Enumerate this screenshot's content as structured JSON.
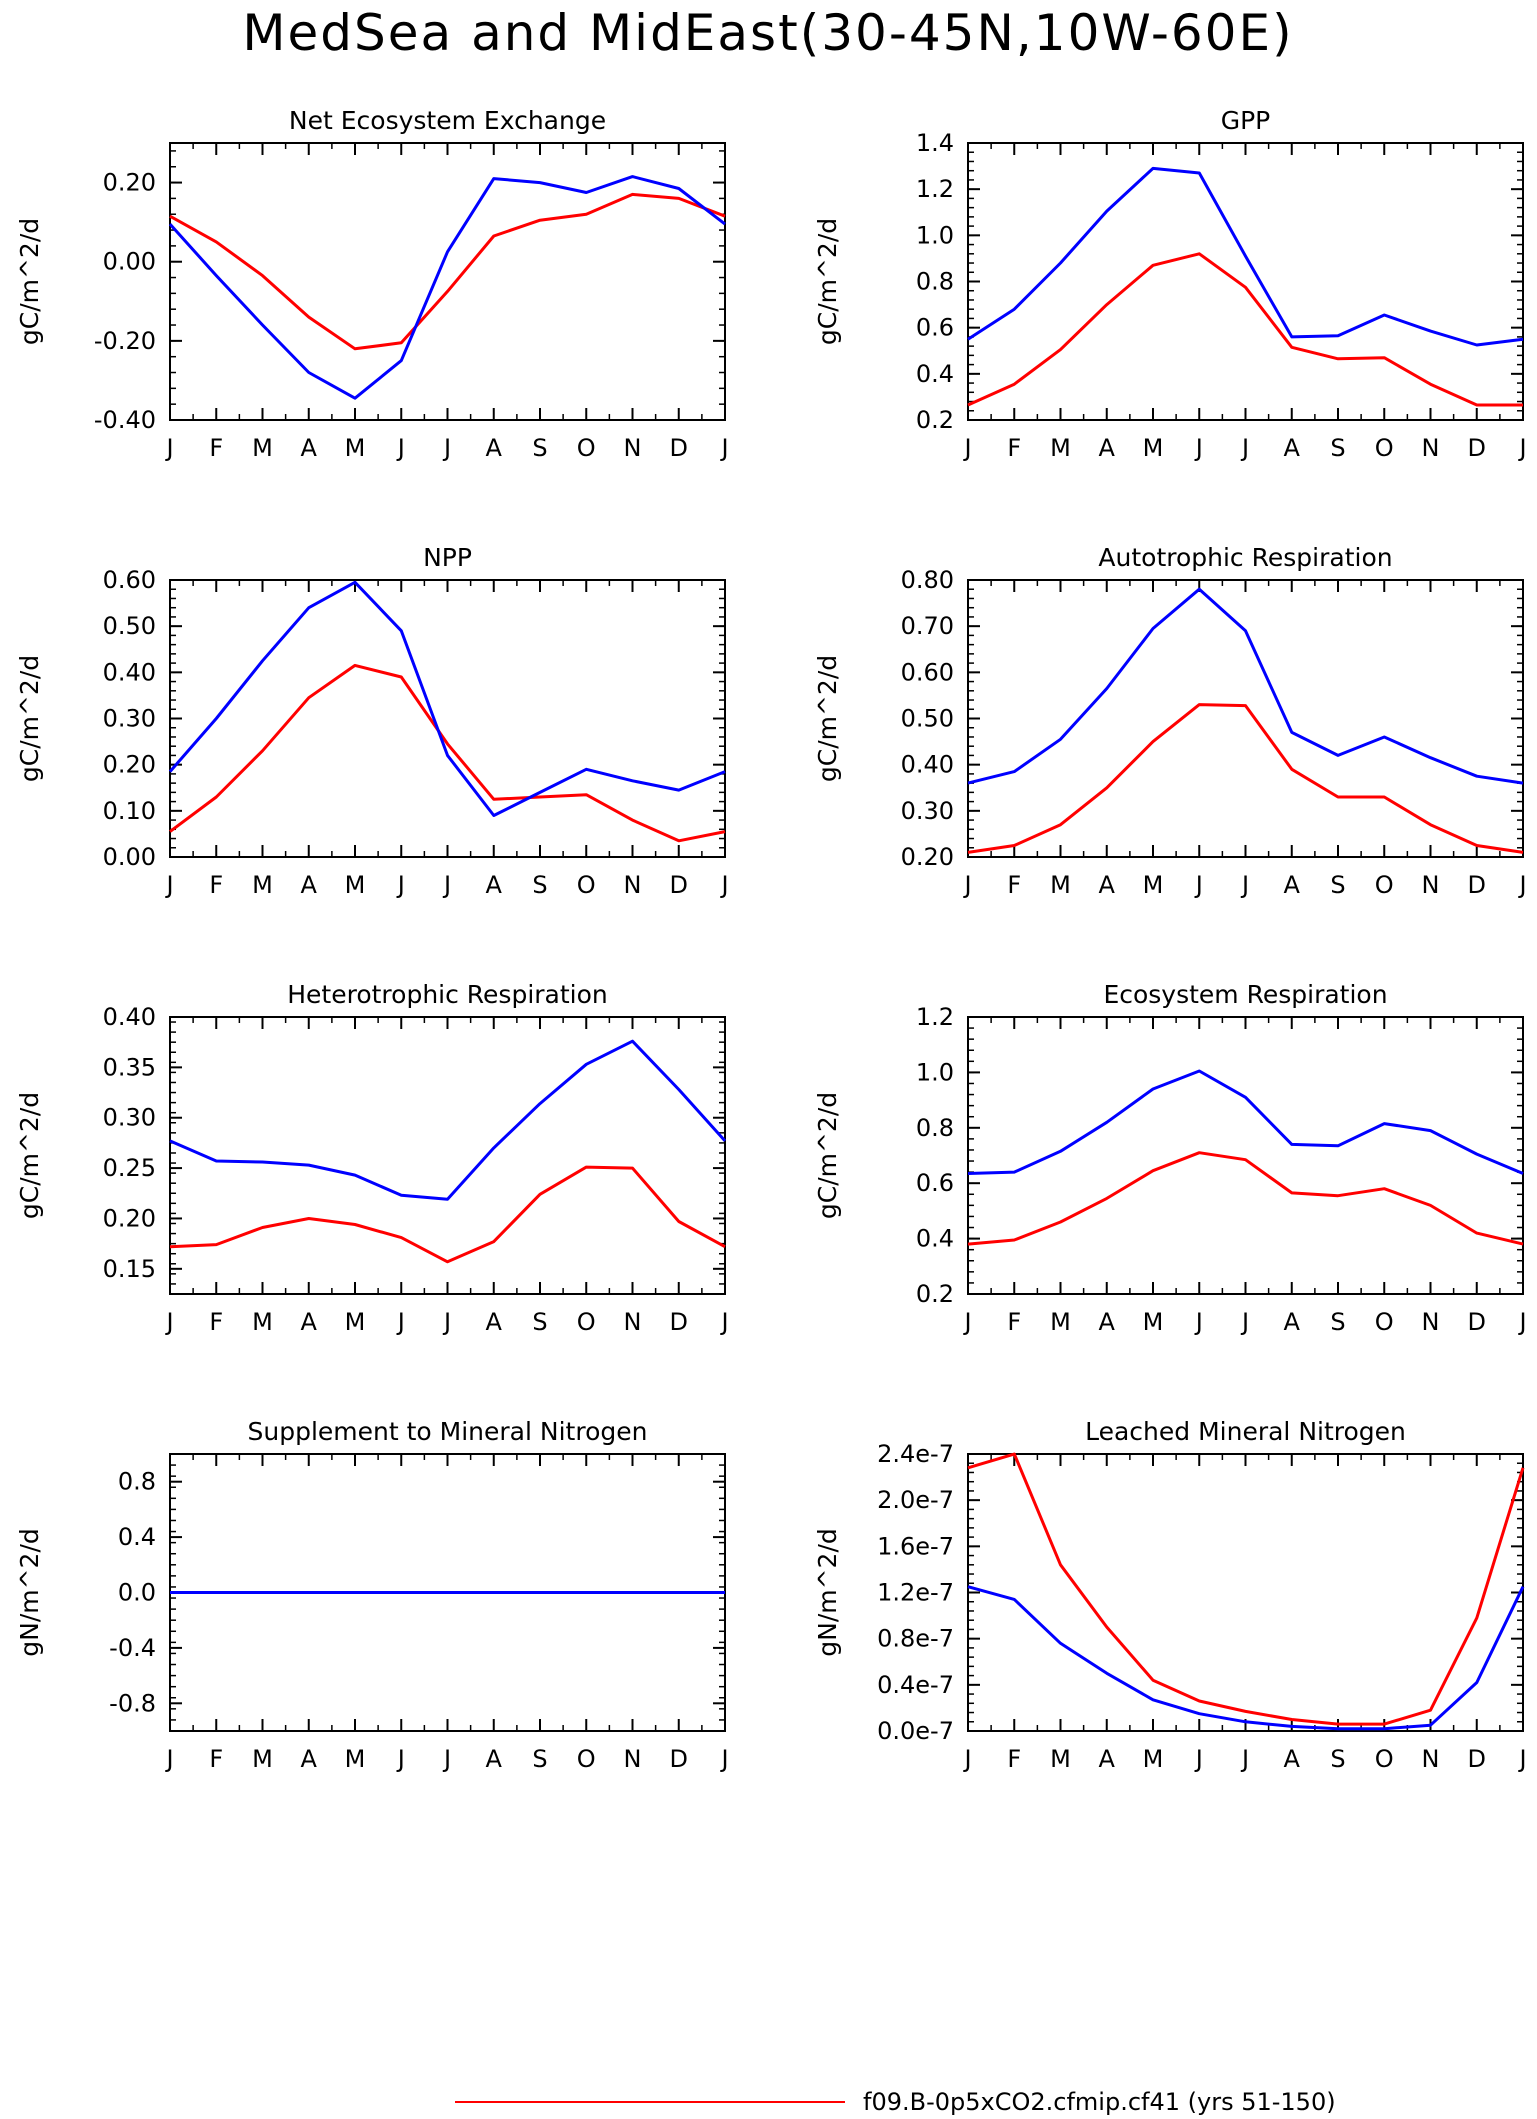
{
  "title": "MedSea and MidEast(30-45N,10W-60E)",
  "colors": {
    "series_red": "#ff0000",
    "series_blue": "#0000ff",
    "axis": "#000000"
  },
  "legend": {
    "entries": [
      {
        "label": "f09.B-0p5xCO2.cfmip.cf41 (yrs 51-150)",
        "color": "#ff0000"
      }
    ]
  },
  "chart_data": [
    {
      "type": "line",
      "title": "Net Ecosystem Exchange",
      "ylabel": "gC/m^2/d",
      "categories": [
        "J",
        "F",
        "M",
        "A",
        "M",
        "J",
        "J",
        "A",
        "S",
        "O",
        "N",
        "D",
        "J"
      ],
      "ylim": [
        -0.4,
        0.3
      ],
      "yticks": [
        -0.4,
        -0.2,
        0.0,
        0.2
      ],
      "yticklabels": [
        "-0.40",
        "-0.20",
        "0.00",
        "0.20"
      ],
      "series": [
        {
          "color": "#ff0000",
          "values": [
            0.115,
            0.05,
            -0.035,
            -0.14,
            -0.22,
            -0.205,
            -0.075,
            0.065,
            0.105,
            0.12,
            0.17,
            0.16,
            0.115
          ]
        },
        {
          "color": "#0000ff",
          "values": [
            0.095,
            -0.035,
            -0.16,
            -0.28,
            -0.345,
            -0.25,
            0.025,
            0.21,
            0.2,
            0.175,
            0.215,
            0.185,
            0.095
          ]
        }
      ]
    },
    {
      "type": "line",
      "title": "GPP",
      "ylabel": "gC/m^2/d",
      "categories": [
        "J",
        "F",
        "M",
        "A",
        "M",
        "J",
        "J",
        "A",
        "S",
        "O",
        "N",
        "D",
        "J"
      ],
      "ylim": [
        0.2,
        1.4
      ],
      "yticks": [
        0.2,
        0.4,
        0.6,
        0.8,
        1.0,
        1.2,
        1.4
      ],
      "yticklabels": [
        "0.2",
        "0.4",
        "0.6",
        "0.8",
        "1.0",
        "1.2",
        "1.4"
      ],
      "series": [
        {
          "color": "#ff0000",
          "values": [
            0.265,
            0.355,
            0.505,
            0.7,
            0.87,
            0.92,
            0.775,
            0.515,
            0.465,
            0.47,
            0.355,
            0.265,
            0.265
          ]
        },
        {
          "color": "#0000ff",
          "values": [
            0.55,
            0.68,
            0.88,
            1.105,
            1.29,
            1.27,
            0.91,
            0.56,
            0.565,
            0.655,
            0.585,
            0.525,
            0.55
          ]
        }
      ]
    },
    {
      "type": "line",
      "title": "NPP",
      "ylabel": "gC/m^2/d",
      "categories": [
        "J",
        "F",
        "M",
        "A",
        "M",
        "J",
        "J",
        "A",
        "S",
        "O",
        "N",
        "D",
        "J"
      ],
      "ylim": [
        0.0,
        0.6
      ],
      "yticks": [
        0.0,
        0.1,
        0.2,
        0.3,
        0.4,
        0.5,
        0.6
      ],
      "yticklabels": [
        "0.00",
        "0.10",
        "0.20",
        "0.30",
        "0.40",
        "0.50",
        "0.60"
      ],
      "series": [
        {
          "color": "#ff0000",
          "values": [
            0.055,
            0.13,
            0.23,
            0.345,
            0.415,
            0.39,
            0.245,
            0.125,
            0.13,
            0.135,
            0.08,
            0.035,
            0.055
          ]
        },
        {
          "color": "#0000ff",
          "values": [
            0.185,
            0.3,
            0.425,
            0.54,
            0.595,
            0.49,
            0.22,
            0.09,
            0.14,
            0.19,
            0.165,
            0.145,
            0.185
          ]
        }
      ]
    },
    {
      "type": "line",
      "title": "Autotrophic Respiration",
      "ylabel": "gC/m^2/d",
      "categories": [
        "J",
        "F",
        "M",
        "A",
        "M",
        "J",
        "J",
        "A",
        "S",
        "O",
        "N",
        "D",
        "J"
      ],
      "ylim": [
        0.2,
        0.8
      ],
      "yticks": [
        0.2,
        0.3,
        0.4,
        0.5,
        0.6,
        0.7,
        0.8
      ],
      "yticklabels": [
        "0.20",
        "0.30",
        "0.40",
        "0.50",
        "0.60",
        "0.70",
        "0.80"
      ],
      "series": [
        {
          "color": "#ff0000",
          "values": [
            0.21,
            0.225,
            0.27,
            0.35,
            0.45,
            0.53,
            0.528,
            0.39,
            0.33,
            0.33,
            0.27,
            0.225,
            0.21
          ]
        },
        {
          "color": "#0000ff",
          "values": [
            0.36,
            0.385,
            0.455,
            0.565,
            0.695,
            0.78,
            0.69,
            0.47,
            0.42,
            0.46,
            0.415,
            0.375,
            0.36
          ]
        }
      ]
    },
    {
      "type": "line",
      "title": "Heterotrophic Respiration",
      "ylabel": "gC/m^2/d",
      "categories": [
        "J",
        "F",
        "M",
        "A",
        "M",
        "J",
        "J",
        "A",
        "S",
        "O",
        "N",
        "D",
        "J"
      ],
      "ylim": [
        0.125,
        0.4
      ],
      "yticks": [
        0.15,
        0.2,
        0.25,
        0.3,
        0.35,
        0.4
      ],
      "yticklabels": [
        "0.15",
        "0.20",
        "0.25",
        "0.30",
        "0.35",
        "0.40"
      ],
      "series": [
        {
          "color": "#ff0000",
          "values": [
            0.172,
            0.174,
            0.191,
            0.2,
            0.194,
            0.181,
            0.157,
            0.177,
            0.224,
            0.251,
            0.25,
            0.197,
            0.172
          ]
        },
        {
          "color": "#0000ff",
          "values": [
            0.277,
            0.257,
            0.256,
            0.253,
            0.243,
            0.223,
            0.219,
            0.27,
            0.314,
            0.353,
            0.376,
            0.328,
            0.277
          ]
        }
      ]
    },
    {
      "type": "line",
      "title": "Ecosystem Respiration",
      "ylabel": "gC/m^2/d",
      "categories": [
        "J",
        "F",
        "M",
        "A",
        "M",
        "J",
        "J",
        "A",
        "S",
        "O",
        "N",
        "D",
        "J"
      ],
      "ylim": [
        0.2,
        1.2
      ],
      "yticks": [
        0.2,
        0.4,
        0.6,
        0.8,
        1.0,
        1.2
      ],
      "yticklabels": [
        "0.2",
        "0.4",
        "0.6",
        "0.8",
        "1.0",
        "1.2"
      ],
      "series": [
        {
          "color": "#ff0000",
          "values": [
            0.38,
            0.395,
            0.46,
            0.545,
            0.645,
            0.71,
            0.685,
            0.565,
            0.555,
            0.58,
            0.52,
            0.42,
            0.38
          ]
        },
        {
          "color": "#0000ff",
          "values": [
            0.635,
            0.64,
            0.715,
            0.82,
            0.94,
            1.005,
            0.91,
            0.74,
            0.735,
            0.815,
            0.79,
            0.705,
            0.635
          ]
        }
      ]
    },
    {
      "type": "line",
      "title": "Supplement to Mineral Nitrogen",
      "ylabel": "gN/m^2/d",
      "categories": [
        "J",
        "F",
        "M",
        "A",
        "M",
        "J",
        "J",
        "A",
        "S",
        "O",
        "N",
        "D",
        "J"
      ],
      "ylim": [
        -1.0,
        1.0
      ],
      "yticks": [
        -0.8,
        -0.4,
        0.0,
        0.4,
        0.8
      ],
      "yticklabels": [
        "-0.8",
        "-0.4",
        "0.0",
        "0.4",
        "0.8"
      ],
      "series": [
        {
          "color": "#ff0000",
          "values": [
            0,
            0,
            0,
            0,
            0,
            0,
            0,
            0,
            0,
            0,
            0,
            0,
            0
          ]
        },
        {
          "color": "#0000ff",
          "values": [
            0,
            0,
            0,
            0,
            0,
            0,
            0,
            0,
            0,
            0,
            0,
            0,
            0
          ]
        }
      ]
    },
    {
      "type": "line",
      "title": "Leached Mineral Nitrogen",
      "ylabel": "gN/m^2/d",
      "categories": [
        "J",
        "F",
        "M",
        "A",
        "M",
        "J",
        "J",
        "A",
        "S",
        "O",
        "N",
        "D",
        "J"
      ],
      "ylim": [
        0.0,
        2.4e-07
      ],
      "yticks": [
        0.0,
        4e-08,
        8e-08,
        1.2e-07,
        1.6e-07,
        2e-07,
        2.4e-07
      ],
      "yticklabels": [
        "0.0e-7",
        "0.4e-7",
        "0.8e-7",
        "1.2e-7",
        "1.6e-7",
        "2.0e-7",
        "2.4e-7"
      ],
      "series": [
        {
          "color": "#ff0000",
          "values": [
            2.28e-07,
            2.4e-07,
            1.44e-07,
            9e-08,
            4.4e-08,
            2.6e-08,
            1.7e-08,
            1e-08,
            6e-09,
            6e-09,
            1.8e-08,
            9.8e-08,
            2.28e-07
          ]
        },
        {
          "color": "#0000ff",
          "values": [
            1.25e-07,
            1.14e-07,
            7.6e-08,
            5e-08,
            2.7e-08,
            1.5e-08,
            8e-09,
            4e-09,
            2e-09,
            2e-09,
            5e-09,
            4.2e-08,
            1.25e-07
          ]
        }
      ]
    }
  ]
}
